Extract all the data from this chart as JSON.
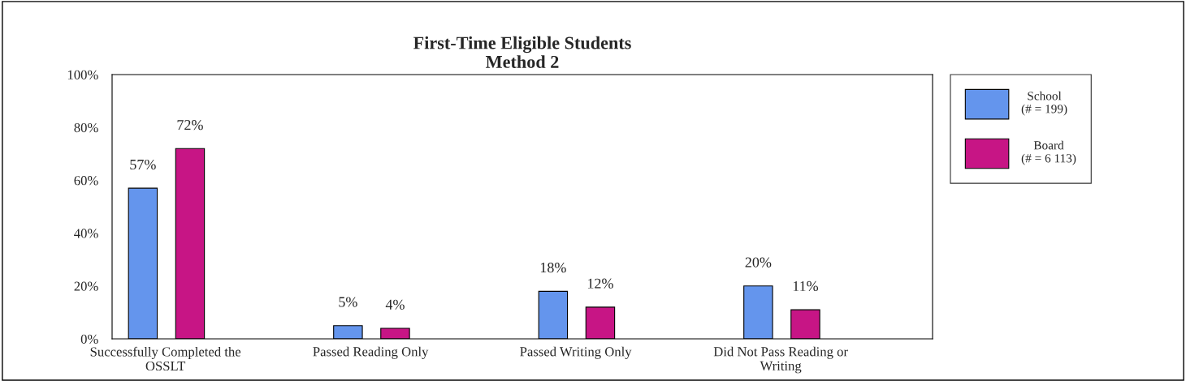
{
  "chart_data": {
    "type": "bar",
    "title": "First-Time Eligible Students\nMethod 2",
    "categories": [
      "Successfully Completed the\nOSSLT",
      "Passed Reading Only",
      "Passed Writing Only",
      "Did Not Pass Reading or\nWriting"
    ],
    "series": [
      {
        "name": "School\n(# = 199)",
        "color": "#6495ed",
        "values": [
          57,
          5,
          18,
          20
        ],
        "value_labels": [
          "57%",
          "5%",
          "18%",
          "20%"
        ]
      },
      {
        "name": "Board\n(# = 6 113)",
        "color": "#c71585",
        "values": [
          72,
          4,
          12,
          11
        ],
        "value_labels": [
          "72%",
          "4%",
          "12%",
          "11%"
        ]
      }
    ],
    "ylim": [
      0,
      100
    ],
    "yticks": [
      {
        "value": 0,
        "label": "0%"
      },
      {
        "value": 20,
        "label": "20%"
      },
      {
        "value": 40,
        "label": "40%"
      },
      {
        "value": 60,
        "label": "60%"
      },
      {
        "value": 80,
        "label": "80%"
      },
      {
        "value": 100,
        "label": "100%"
      }
    ],
    "grid": false,
    "legend": "right"
  }
}
